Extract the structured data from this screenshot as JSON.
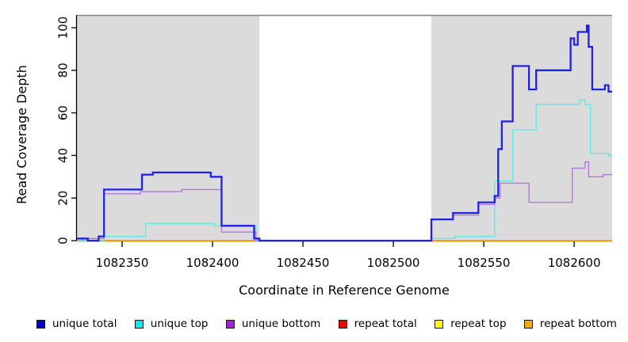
{
  "chart_data": {
    "type": "line",
    "subtype": "step-after",
    "xlabel": "Coordinate in Reference Genome",
    "ylabel": "Read Coverage Depth",
    "xlim": [
      1082325,
      1082621
    ],
    "ylim": [
      0,
      100
    ],
    "x_tick_values": [
      1082350,
      1082400,
      1082450,
      1082500,
      1082550,
      1082600
    ],
    "x_tick_labels": [
      "1082350",
      "1082400",
      "1082450",
      "1082500",
      "1082550",
      "1082600"
    ],
    "y_tick_values": [
      0,
      20,
      40,
      60,
      80,
      100
    ],
    "y_tick_labels": [
      "0",
      "20",
      "40",
      "60",
      "80",
      "100"
    ],
    "grid": false,
    "legend_position": "bottom",
    "background_color": "#ffffff",
    "shaded_regions": {
      "color": "#dbdbdb",
      "border_color": "#858585",
      "ranges": [
        [
          1082325,
          1082426
        ],
        [
          1082521,
          1082621
        ]
      ]
    },
    "series": [
      {
        "name": "unique total",
        "color": "#2121e2",
        "legend_color": "#0000dd",
        "segments": [
          [
            [
              1082325,
              1
            ],
            [
              1082331,
              0
            ],
            [
              1082337,
              2
            ],
            [
              1082340,
              24
            ],
            [
              1082361,
              31
            ],
            [
              1082367,
              32
            ],
            [
              1082399,
              30
            ],
            [
              1082405,
              7
            ],
            [
              1082423,
              1
            ],
            [
              1082426,
              0
            ],
            [
              1082521,
              10
            ],
            [
              1082533,
              13
            ],
            [
              1082547,
              18
            ],
            [
              1082556,
              21
            ],
            [
              1082558,
              43
            ],
            [
              1082560,
              56
            ],
            [
              1082566,
              82
            ],
            [
              1082575,
              71
            ],
            [
              1082579,
              80
            ],
            [
              1082598,
              95
            ],
            [
              1082600,
              92
            ],
            [
              1082602,
              98
            ],
            [
              1082607,
              101
            ],
            [
              1082608,
              91
            ],
            [
              1082610,
              71
            ],
            [
              1082617,
              73
            ],
            [
              1082619,
              70
            ],
            [
              1082621,
              70
            ]
          ]
        ]
      },
      {
        "name": "unique top",
        "color": "#63e6e6",
        "legend_color": "#00eeee",
        "segments": [
          [
            [
              1082325,
              0
            ],
            [
              1082340,
              2
            ],
            [
              1082363,
              8
            ],
            [
              1082401,
              7
            ],
            [
              1082424,
              0
            ],
            [
              1082521,
              1
            ],
            [
              1082534,
              2
            ],
            [
              1082556,
              28
            ],
            [
              1082566,
              52
            ],
            [
              1082579,
              64
            ],
            [
              1082603,
              66
            ],
            [
              1082606,
              64
            ],
            [
              1082609,
              41
            ],
            [
              1082619,
              40
            ],
            [
              1082621,
              40
            ]
          ]
        ]
      },
      {
        "name": "unique bottom",
        "color": "#b576e0",
        "legend_color": "#9a2acd",
        "segments": [
          [
            [
              1082325,
              1
            ],
            [
              1082340,
              22
            ],
            [
              1082360,
              23
            ],
            [
              1082383,
              24
            ],
            [
              1082405,
              4
            ],
            [
              1082424,
              0
            ],
            [
              1082521,
              10
            ],
            [
              1082533,
              12
            ],
            [
              1082547,
              17
            ],
            [
              1082556,
              20
            ],
            [
              1082559,
              27
            ],
            [
              1082575,
              18
            ],
            [
              1082599,
              34
            ],
            [
              1082606,
              37
            ],
            [
              1082608,
              30
            ],
            [
              1082616,
              31
            ],
            [
              1082621,
              31
            ]
          ]
        ]
      },
      {
        "name": "repeat total",
        "color": "#dd0000",
        "legend_color": "#ee0000",
        "segments": [
          [
            [
              1082325,
              0
            ],
            [
              1082426,
              0
            ]
          ],
          [
            [
              1082521,
              0
            ],
            [
              1082621,
              0
            ]
          ]
        ]
      },
      {
        "name": "repeat top",
        "color": "#ffff00",
        "legend_color": "#ffff00",
        "segments": [
          [
            [
              1082325,
              0
            ],
            [
              1082426,
              0
            ]
          ],
          [
            [
              1082521,
              0
            ],
            [
              1082621,
              0
            ]
          ]
        ]
      },
      {
        "name": "repeat bottom",
        "color": "#ffa300",
        "legend_color": "#ffa500",
        "segments": [
          [
            [
              1082325,
              0
            ],
            [
              1082426,
              0
            ]
          ],
          [
            [
              1082521,
              0
            ],
            [
              1082621,
              0
            ]
          ]
        ]
      }
    ]
  }
}
